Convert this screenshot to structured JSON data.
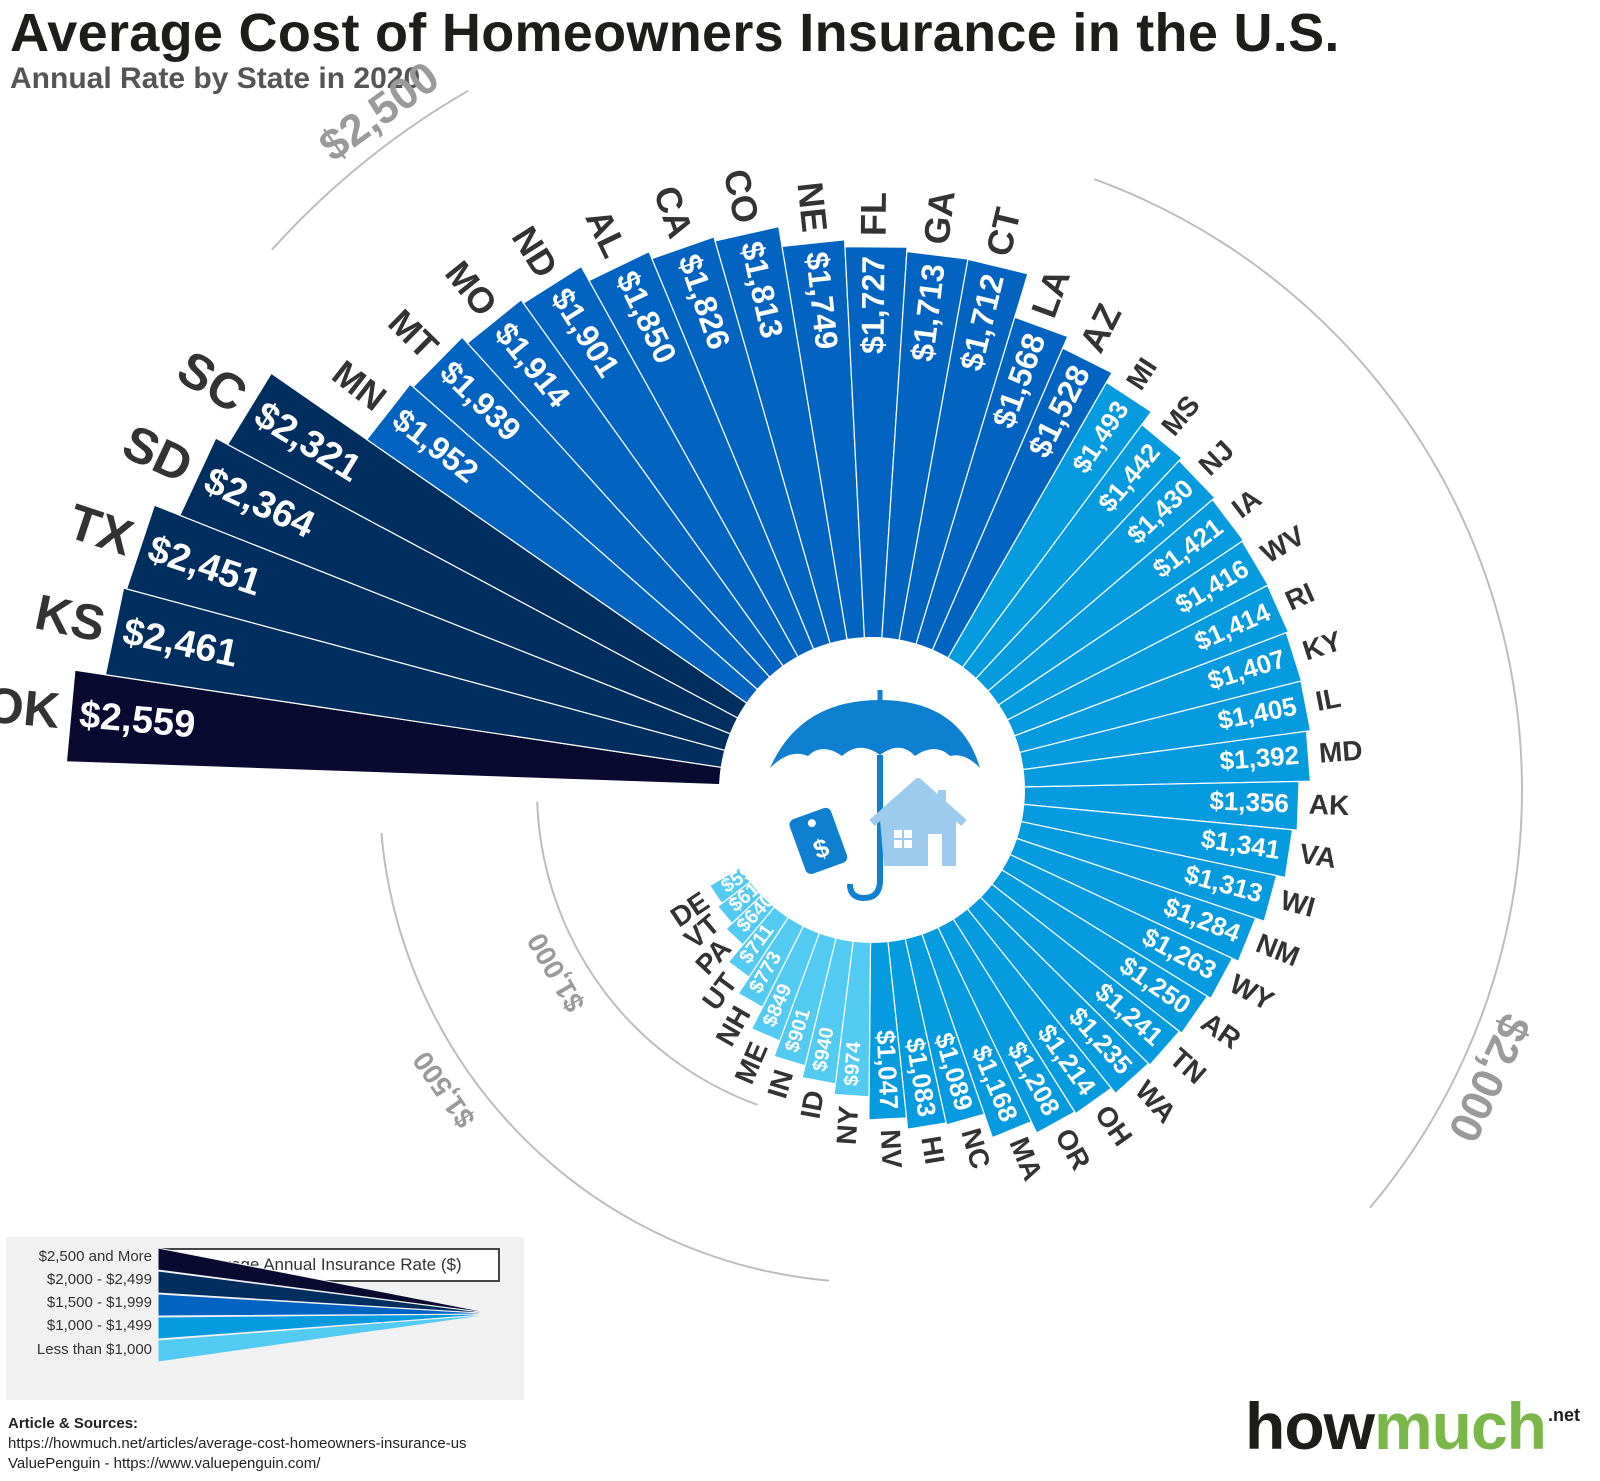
{
  "header": {
    "title": "Average Cost of Homeowners Insurance in the U.S.",
    "subtitle": "Annual Rate by State in 2020"
  },
  "chart_data": {
    "type": "radial-bar",
    "title": "Average Cost of Homeowners Insurance in the U.S.",
    "subtitle": "Annual Rate by State in 2020",
    "unit": "$",
    "scale_labels": [
      {
        "label": "$2,500",
        "value": 2500
      },
      {
        "label": "$2,000",
        "value": 2000
      },
      {
        "label": "$1,500",
        "value": 1500
      },
      {
        "label": "$1,000",
        "value": 1000
      }
    ],
    "colors": {
      "2500+": "#0a0a30",
      "2000-2499": "#002e5e",
      "1500-1999": "#0363c0",
      "1000-1499": "#069bdf",
      "lt1000": "#53caf1"
    },
    "states": [
      {
        "state": "OK",
        "label": "$2,559",
        "value": 2559
      },
      {
        "state": "KS",
        "label": "$2,461",
        "value": 2461
      },
      {
        "state": "TX",
        "label": "$2,451",
        "value": 2451
      },
      {
        "state": "SD",
        "label": "$2,364",
        "value": 2364
      },
      {
        "state": "SC",
        "label": "$2,321",
        "value": 2321
      },
      {
        "state": "MN",
        "label": "$1,952",
        "value": 1952
      },
      {
        "state": "MT",
        "label": "$1,939",
        "value": 1939
      },
      {
        "state": "MO",
        "label": "$1,914",
        "value": 1914
      },
      {
        "state": "ND",
        "label": "$1,901",
        "value": 1901
      },
      {
        "state": "AL",
        "label": "$1,850",
        "value": 1850
      },
      {
        "state": "CA",
        "label": "$1,826",
        "value": 1826
      },
      {
        "state": "CO",
        "label": "$1,813",
        "value": 1813
      },
      {
        "state": "NE",
        "label": "$1,749",
        "value": 1749
      },
      {
        "state": "FL",
        "label": "$1,727",
        "value": 1727
      },
      {
        "state": "GA",
        "label": "$1,713",
        "value": 1713
      },
      {
        "state": "CT",
        "label": "$1,712",
        "value": 1712
      },
      {
        "state": "LA",
        "label": "$1,568",
        "value": 1568
      },
      {
        "state": "AZ",
        "label": "$1,528",
        "value": 1528
      },
      {
        "state": "MI",
        "label": "$1,493",
        "value": 1493
      },
      {
        "state": "MS",
        "label": "$1,442",
        "value": 1442
      },
      {
        "state": "NJ",
        "label": "$1,430",
        "value": 1430
      },
      {
        "state": "IA",
        "label": "$1,421",
        "value": 1421
      },
      {
        "state": "WV",
        "label": "$1,416",
        "value": 1416
      },
      {
        "state": "RI",
        "label": "$1,414",
        "value": 1414
      },
      {
        "state": "KY",
        "label": "$1,407",
        "value": 1407
      },
      {
        "state": "IL",
        "label": "$1,405",
        "value": 1405
      },
      {
        "state": "MD",
        "label": "$1,392",
        "value": 1392
      },
      {
        "state": "AK",
        "label": "$1,356",
        "value": 1356
      },
      {
        "state": "VA",
        "label": "$1,341",
        "value": 1341
      },
      {
        "state": "WI",
        "label": "$1,313",
        "value": 1313
      },
      {
        "state": "NM",
        "label": "$1,284",
        "value": 1284
      },
      {
        "state": "WY",
        "label": "$1,263",
        "value": 1263
      },
      {
        "state": "AR",
        "label": "$1,250",
        "value": 1250
      },
      {
        "state": "TN",
        "label": "$1,241",
        "value": 1241
      },
      {
        "state": "WA",
        "label": "$1,235",
        "value": 1235
      },
      {
        "state": "OH",
        "label": "$1,214",
        "value": 1214
      },
      {
        "state": "OR",
        "label": "$1,208",
        "value": 1208
      },
      {
        "state": "MA",
        "label": "$1,168",
        "value": 1168
      },
      {
        "state": "NC",
        "label": "$1,089",
        "value": 1089
      },
      {
        "state": "HI",
        "label": "$1,083",
        "value": 1083
      },
      {
        "state": "NV",
        "label": "$1,047",
        "value": 1047
      },
      {
        "state": "NY",
        "label": "$974",
        "value": 974
      },
      {
        "state": "ID",
        "label": "$940",
        "value": 940
      },
      {
        "state": "IN",
        "label": "$901",
        "value": 901
      },
      {
        "state": "ME",
        "label": "$849",
        "value": 849
      },
      {
        "state": "NH",
        "label": "$773",
        "value": 773
      },
      {
        "state": "UT",
        "label": "$711",
        "value": 711
      },
      {
        "state": "PA",
        "label": "$640",
        "value": 640
      },
      {
        "state": "VT",
        "label": "$614",
        "value": 614
      },
      {
        "state": "DE",
        "label": "$598",
        "value": 598
      }
    ]
  },
  "legend": {
    "title": "Average Annual Insurance Rate ($)",
    "items": [
      {
        "label": "$2,500 and More",
        "color": "#0a0a30"
      },
      {
        "label": "$2,000 - $2,499",
        "color": "#002e5e"
      },
      {
        "label": "$1,500 - $1,999",
        "color": "#0363c0"
      },
      {
        "label": "$1,000 - $1,499",
        "color": "#069bdf"
      },
      {
        "label": "Less than $1,000",
        "color": "#53caf1"
      }
    ]
  },
  "sources": {
    "heading": "Article & Sources:",
    "line1": "https://howmuch.net/articles/average-cost-homeowners-insurance-us",
    "line2": "ValuePenguin - https://www.valuepenguin.com/"
  },
  "brand": {
    "part1": "how",
    "part2": "much",
    "suffix": ".net"
  },
  "center_icon": "umbrella-house-icon"
}
